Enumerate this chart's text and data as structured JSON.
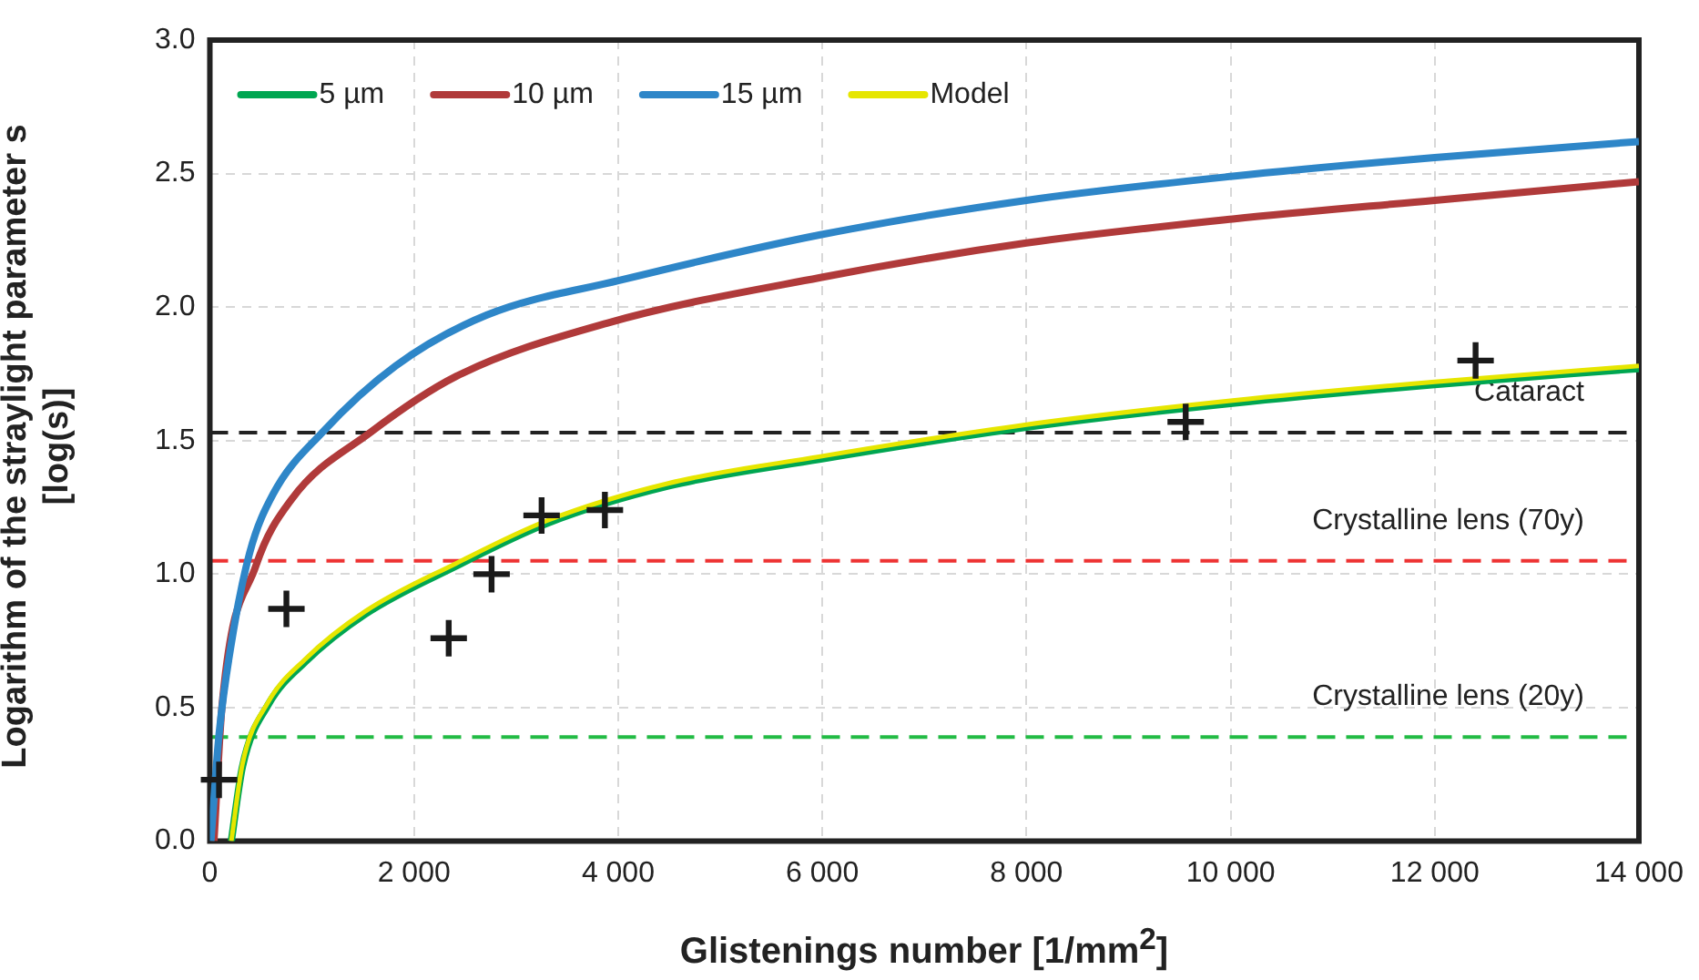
{
  "chart_data": {
    "type": "line",
    "xlabel": "Glistenings number [1/mm$^{2}$]",
    "ylabel": "Logarithm of the straylight parameter s [log(s)]",
    "xlim": [
      0,
      14000
    ],
    "ylim": [
      0,
      3
    ],
    "xticks": [
      0,
      {
        "value": 2000,
        "label": "2 000"
      },
      {
        "value": 4000,
        "label": "4 000"
      },
      {
        "value": 6000,
        "label": "6 000"
      },
      {
        "value": 8000,
        "label": "8 000"
      },
      {
        "value": 10000,
        "label": "10 000"
      },
      {
        "value": 12000,
        "label": "12 000"
      },
      {
        "value": 14000,
        "label": "14 000"
      }
    ],
    "yticks": [
      {
        "value": 0,
        "label": "0.0"
      },
      {
        "value": 0.5,
        "label": "0.5"
      },
      {
        "value": 1,
        "label": "1.0"
      },
      {
        "value": 1.5,
        "label": "1.5"
      },
      {
        "value": 2,
        "label": "2.0"
      },
      {
        "value": 2.5,
        "label": "2.5"
      },
      {
        "value": 3,
        "label": "3.0"
      }
    ],
    "grid": true,
    "legend": "top left",
    "marker": "none",
    "line_style": "solid",
    "series": [
      {
        "name": "5 µm",
        "color": "#00a651",
        "x": [
          210,
          320,
          570,
          930,
          1520,
          2410,
          3300,
          4490,
          5970,
          8000,
          10020,
          12000,
          14000
        ],
        "values": [
          0,
          0.28,
          0.51,
          0.67,
          0.85,
          1.03,
          1.19,
          1.33,
          1.43,
          1.55,
          1.64,
          1.71,
          1.77
        ]
      },
      {
        "name": "10 µm",
        "color": "#b03a3a",
        "x": [
          40,
          120,
          450,
          800,
          1570,
          2410,
          3890,
          5970,
          8000,
          10020,
          12000,
          14000
        ],
        "values": [
          0,
          0.51,
          1.03,
          1.28,
          1.53,
          1.74,
          1.94,
          2.11,
          2.24,
          2.33,
          2.4,
          2.47
        ]
      },
      {
        "name": "15 µm",
        "color": "#2e86c8",
        "x": [
          10,
          90,
          210,
          390,
          620,
          1100,
          1820,
          2710,
          4010,
          5970,
          8000,
          10020,
          12000,
          14000
        ],
        "values": [
          0,
          0.4,
          0.74,
          1.08,
          1.3,
          1.53,
          1.78,
          1.97,
          2.1,
          2.27,
          2.4,
          2.49,
          2.56,
          2.62
        ]
      },
      {
        "name": "Model",
        "color": "#e6e600",
        "x": [
          210,
          320,
          570,
          930,
          1520,
          2410,
          3300,
          4490,
          5970,
          8000,
          10020,
          12000,
          14000
        ],
        "values": [
          0,
          0.29,
          0.52,
          0.68,
          0.86,
          1.04,
          1.2,
          1.34,
          1.44,
          1.56,
          1.65,
          1.72,
          1.78
        ]
      },
      {
        "type": "scatter",
        "marker": "cross",
        "color": "#1a1a1a",
        "x": [
          90,
          750,
          2340,
          2760,
          3250,
          3870,
          9560,
          12400
        ],
        "values": [
          0.23,
          0.87,
          0.76,
          1.0,
          1.22,
          1.24,
          1.57,
          1.8
        ]
      }
    ],
    "ref_lines": [
      {
        "axis": "y",
        "value": 1.53,
        "label": "Cataract",
        "color": "#222222",
        "line_style": "dashed"
      },
      {
        "axis": "y",
        "value": 1.05,
        "label": "Crystalline lens (70y)",
        "color": "#ee3333",
        "line_style": "dashed"
      },
      {
        "axis": "y",
        "value": 0.39,
        "label": "Crystalline lens (20y)",
        "color": "#22bb44",
        "line_style": "dashed"
      }
    ]
  }
}
